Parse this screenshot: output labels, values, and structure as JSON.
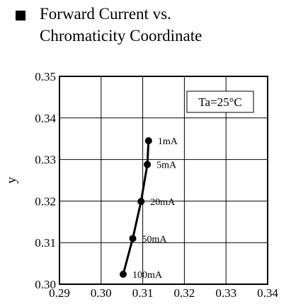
{
  "title": {
    "line1": "Forward Current vs.",
    "line2": "Chromaticity  Coordinate"
  },
  "chart_data": {
    "type": "line",
    "ylabel": "y",
    "xlabel": "",
    "xlim": [
      0.29,
      0.34
    ],
    "ylim": [
      0.3,
      0.35
    ],
    "x_ticks": [
      "0.29",
      "0.30",
      "0.31",
      "0.32",
      "0.33",
      "0.34"
    ],
    "y_ticks": [
      "0.30",
      "0.31",
      "0.32",
      "0.33",
      "0.34",
      "0.35"
    ],
    "grid": true,
    "annotation": "Ta=25°C",
    "series": [
      {
        "points": [
          {
            "x": 0.3114,
            "y": 0.3345,
            "label": "1mA"
          },
          {
            "x": 0.3111,
            "y": 0.3288,
            "label": "5mA"
          },
          {
            "x": 0.3096,
            "y": 0.3199,
            "label": "20mA"
          },
          {
            "x": 0.3076,
            "y": 0.311,
            "label": "50mA"
          },
          {
            "x": 0.3053,
            "y": 0.3024,
            "label": "100mA"
          }
        ]
      }
    ]
  }
}
